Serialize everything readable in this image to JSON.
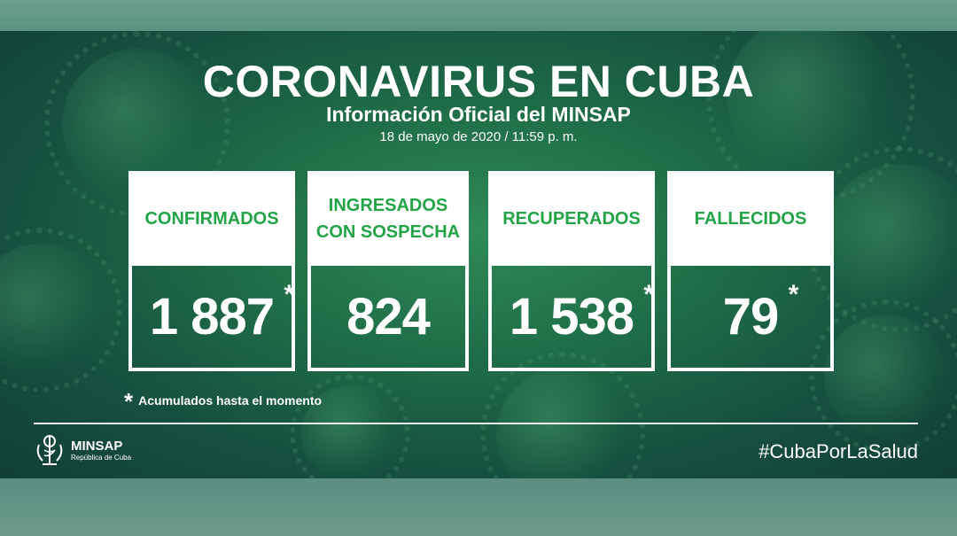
{
  "header": {
    "title": "CORONAVIRUS EN CUBA",
    "subtitle": "Información Oficial del MINSAP",
    "date": "18 de mayo de 2020 / 11:59 p. m."
  },
  "cards": [
    {
      "label": "CONFIRMADOS",
      "value": "1 887",
      "starred": true
    },
    {
      "label": "INGRESADOS CON SOSPECHA",
      "value": "824",
      "starred": false
    },
    {
      "label": "RECUPERADOS",
      "value": "1 538",
      "starred": true
    },
    {
      "label": "FALLECIDOS",
      "value": "79",
      "starred": true
    }
  ],
  "footnote": {
    "star": "*",
    "text": "Acumulados hasta el momento"
  },
  "footer": {
    "logo_name": "MINSAP",
    "logo_sub": "República de Cuba",
    "hashtag": "#CubaPorLaSalud"
  },
  "colors": {
    "label_green": "#22a447",
    "background_green": "#1f6e47",
    "text_white": "#ffffff"
  }
}
